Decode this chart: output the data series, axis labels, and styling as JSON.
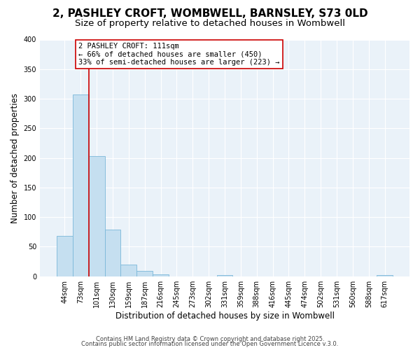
{
  "title": "2, PASHLEY CROFT, WOMBWELL, BARNSLEY, S73 0LD",
  "subtitle": "Size of property relative to detached houses in Wombwell",
  "bar_labels": [
    "44sqm",
    "73sqm",
    "101sqm",
    "130sqm",
    "159sqm",
    "187sqm",
    "216sqm",
    "245sqm",
    "273sqm",
    "302sqm",
    "331sqm",
    "359sqm",
    "388sqm",
    "416sqm",
    "445sqm",
    "474sqm",
    "502sqm",
    "531sqm",
    "560sqm",
    "588sqm",
    "617sqm"
  ],
  "bar_values": [
    68,
    307,
    203,
    79,
    20,
    9,
    3,
    0,
    0,
    0,
    2,
    0,
    0,
    0,
    0,
    0,
    0,
    0,
    0,
    0,
    2
  ],
  "bar_color": "#c5dff0",
  "bar_edge_color": "#7ab8d9",
  "vline_color": "#cc0000",
  "vline_x_index": 2,
  "annotation_title": "2 PASHLEY CROFT: 111sqm",
  "annotation_line1": "← 66% of detached houses are smaller (450)",
  "annotation_line2": "33% of semi-detached houses are larger (223) →",
  "annotation_box_facecolor": "#ffffff",
  "annotation_box_edgecolor": "#cc0000",
  "xlabel": "Distribution of detached houses by size in Wombwell",
  "ylabel": "Number of detached properties",
  "ylim": [
    0,
    400
  ],
  "yticks": [
    0,
    50,
    100,
    150,
    200,
    250,
    300,
    350,
    400
  ],
  "footer1": "Contains HM Land Registry data © Crown copyright and database right 2025.",
  "footer2": "Contains public sector information licensed under the Open Government Licence v.3.0.",
  "bg_color": "#ffffff",
  "plot_bg_color": "#eaf2f9",
  "grid_color": "#ffffff",
  "title_fontsize": 11,
  "subtitle_fontsize": 9.5,
  "tick_fontsize": 7,
  "label_fontsize": 8.5,
  "footer_fontsize": 6,
  "annotation_fontsize": 7.5
}
